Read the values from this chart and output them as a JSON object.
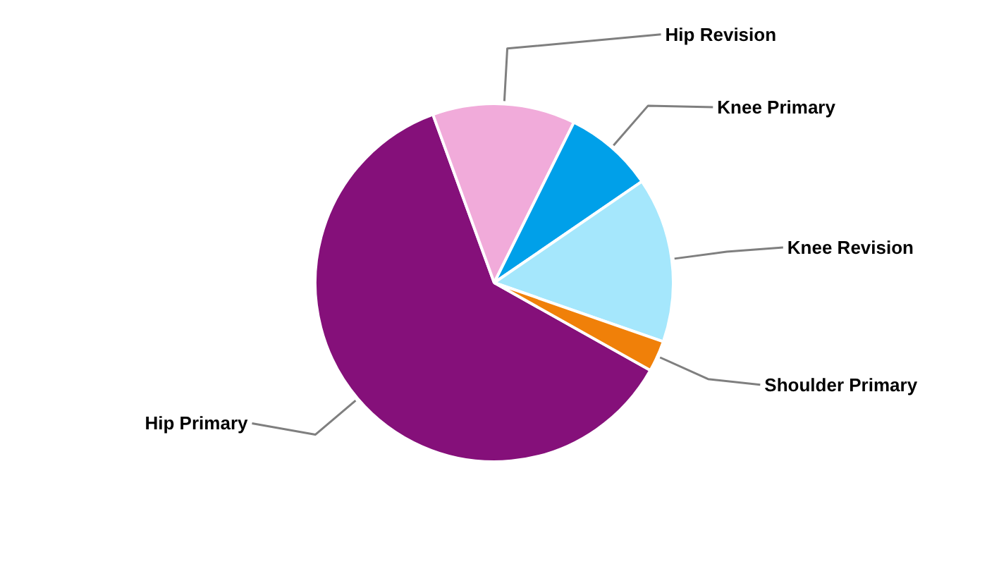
{
  "chart_data": {
    "type": "pie",
    "categories": [
      "Hip Primary",
      "Hip Revision",
      "Knee Primary",
      "Knee Revision",
      "Shoulder Primary"
    ],
    "values": [
      61.3,
      12.9,
      8.1,
      14.9,
      2.8
    ],
    "colors": [
      "#85107a",
      "#f1abda",
      "#00a0e9",
      "#a5e7fc",
      "#f08009"
    ]
  }
}
